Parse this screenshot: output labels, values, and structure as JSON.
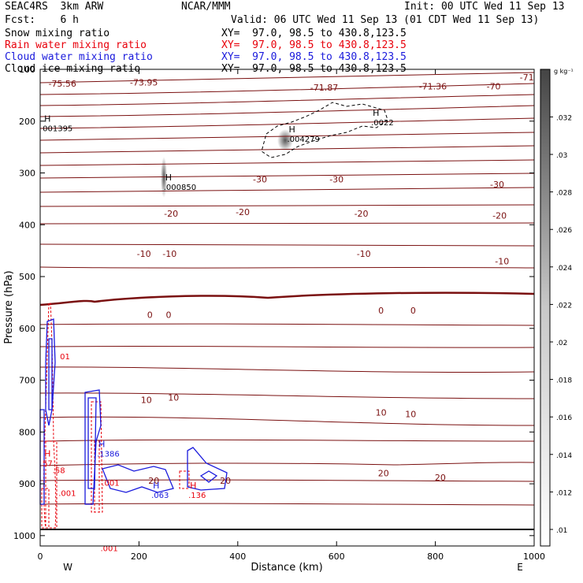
{
  "header": {
    "model": "SEAC4RS  3km ARW",
    "org": "NCAR/MMM",
    "init": "Init: 00 UTC Wed 11 Sep 13",
    "fcst": "Fcst:    6 h",
    "valid": "Valid: 06 UTC Wed 11 Sep 13 (01 CDT Wed 11 Sep 13)"
  },
  "fields": [
    {
      "name": "Snow mixing ratio",
      "xy": "XY=  97.0, 98.5 to 430.8,123.5",
      "color": "#000000"
    },
    {
      "name": "Rain water mixing ratio",
      "xy": "XY=  97.0, 98.5 to 430.8,123.5",
      "color": "#e8000b"
    },
    {
      "name": "Cloud water mixing ratio",
      "xy": "XY=  97.0, 98.5 to 430.8,123.5",
      "color": "#1a1adc"
    },
    {
      "name": "Cloud ice mixing ratio",
      "xy": "XY=  97.0, 98.5 to 430.8,123.5",
      "color": "#000000"
    }
  ],
  "colorbar": {
    "unit": "g kg⁻¹",
    "ticks": [
      ".01",
      ".012",
      ".014",
      ".016",
      ".018",
      ".02",
      ".022",
      ".024",
      ".026",
      ".028",
      ".03",
      ".032"
    ]
  },
  "temp_color": "#7a1010",
  "chart_data": {
    "type": "contour",
    "xlabel": "Distance (km)",
    "ylabel": "Pressure (hPa)",
    "xlim": [
      0,
      1000
    ],
    "ylim": [
      1020,
      100
    ],
    "xticks": [
      0,
      200,
      400,
      600,
      800,
      1000
    ],
    "yticks": [
      100,
      200,
      300,
      400,
      500,
      600,
      700,
      800,
      900,
      1000
    ],
    "west_label": "W",
    "east_label": "E",
    "temperature_labels": [
      {
        "text": "-75.56",
        "x": 45,
        "p": 127
      },
      {
        "text": "-73.95",
        "x": 210,
        "p": 125
      },
      {
        "text": "-71.87",
        "x": 575,
        "p": 135
      },
      {
        "text": "-71.36",
        "x": 795,
        "p": 133
      },
      {
        "text": "-70",
        "x": 918,
        "p": 133
      },
      {
        "text": "-71",
        "x": 985,
        "p": 115
      },
      {
        "text": "-30",
        "x": 445,
        "p": 312
      },
      {
        "text": "-30",
        "x": 600,
        "p": 312
      },
      {
        "text": "-30",
        "x": 925,
        "p": 322
      },
      {
        "text": "-20",
        "x": 265,
        "p": 378
      },
      {
        "text": "-20",
        "x": 410,
        "p": 375
      },
      {
        "text": "-20",
        "x": 650,
        "p": 378
      },
      {
        "text": "-20",
        "x": 930,
        "p": 382
      },
      {
        "text": "-10",
        "x": 210,
        "p": 456
      },
      {
        "text": "-10",
        "x": 262,
        "p": 456
      },
      {
        "text": "-10",
        "x": 655,
        "p": 456
      },
      {
        "text": "-10",
        "x": 935,
        "p": 470
      },
      {
        "text": "0",
        "x": 222,
        "p": 574
      },
      {
        "text": "0",
        "x": 260,
        "p": 574
      },
      {
        "text": "0",
        "x": 690,
        "p": 565
      },
      {
        "text": "0",
        "x": 755,
        "p": 565
      },
      {
        "text": "10",
        "x": 215,
        "p": 738
      },
      {
        "text": "10",
        "x": 270,
        "p": 733
      },
      {
        "text": "10",
        "x": 690,
        "p": 762
      },
      {
        "text": "10",
        "x": 750,
        "p": 765
      },
      {
        "text": "20",
        "x": 230,
        "p": 894
      },
      {
        "text": "20",
        "x": 375,
        "p": 894
      },
      {
        "text": "20",
        "x": 695,
        "p": 879
      },
      {
        "text": "20",
        "x": 810,
        "p": 888
      }
    ],
    "maxima": [
      {
        "label": "H",
        "value": "001395",
        "x": 5,
        "p": 212,
        "color": "#000000"
      },
      {
        "label": "H",
        "value": ".000850",
        "x": 250,
        "p": 325,
        "color": "#000000"
      },
      {
        "label": "H",
        "value": ".004279",
        "x": 500,
        "p": 232,
        "color": "#000000"
      },
      {
        "label": "H",
        "value": ".0022",
        "x": 670,
        "p": 200,
        "color": "#000000"
      },
      {
        "label": "",
        "value": "01",
        "x": 40,
        "p": 652,
        "color": "#e8000b"
      },
      {
        "label": "H",
        "value": ".1386",
        "x": 115,
        "p": 840,
        "color": "#1a1adc"
      },
      {
        "label": "H",
        "value": "57",
        "x": 5,
        "p": 858,
        "color": "#e8000b"
      },
      {
        "label": "",
        "value": ".58",
        "x": 25,
        "p": 872,
        "color": "#e8000b"
      },
      {
        "label": "",
        "value": ".001",
        "x": 37,
        "p": 916,
        "color": "#e8000b"
      },
      {
        "label": "",
        "value": ".001",
        "x": 125,
        "p": 896,
        "color": "#e8000b"
      },
      {
        "label": "",
        "value": ".001",
        "x": 122,
        "p": 1022,
        "color": "#e8000b"
      },
      {
        "label": "H",
        "value": ".063",
        "x": 225,
        "p": 920,
        "color": "#1a1adc"
      },
      {
        "label": "H",
        "value": ".136",
        "x": 300,
        "p": 920,
        "color": "#e8000b"
      }
    ]
  }
}
